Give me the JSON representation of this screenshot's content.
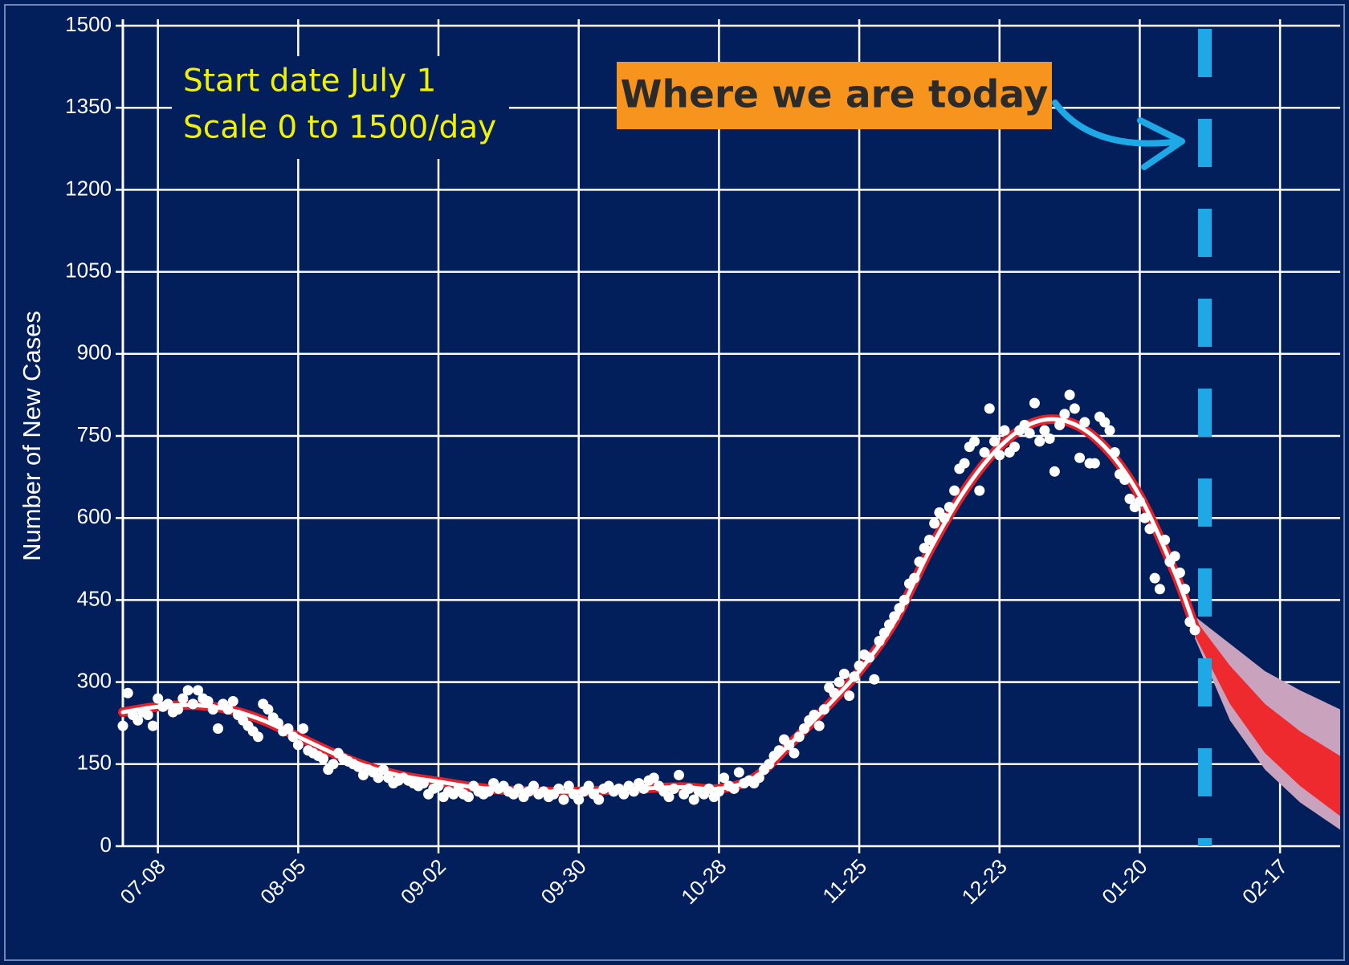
{
  "chart_data": {
    "type": "scatter",
    "ylabel": "Number of New Cases",
    "background": "#021f5c",
    "xlim": [
      "07-01",
      "03-01"
    ],
    "xticks": [
      "07-08",
      "08-05",
      "09-02",
      "09-30",
      "10-28",
      "11-25",
      "12-23",
      "01-20",
      "02-17"
    ],
    "ylim": [
      0,
      1500
    ],
    "yticks": [
      0,
      150,
      300,
      450,
      600,
      750,
      900,
      1050,
      1200,
      1350,
      1500
    ],
    "grid": true,
    "notes": [
      "Start date July 1",
      "Scale 0 to 1500/day"
    ],
    "annotation": {
      "text": "Where we are today",
      "color": "#f7941d"
    },
    "reference_line": {
      "x": "02-02",
      "color": "#1ea8e6"
    },
    "series": [
      {
        "type": "band",
        "color": "#c9a3bd",
        "x": [
          "01-31",
          "02-07",
          "02-14",
          "02-21",
          "03-01"
        ],
        "upper": [
          420,
          370,
          320,
          285,
          250
        ],
        "lower": [
          380,
          230,
          140,
          80,
          30
        ]
      },
      {
        "type": "band",
        "color": "#ee2a2f",
        "x": [
          "01-31",
          "02-07",
          "02-14",
          "02-21",
          "03-01"
        ],
        "upper": [
          415,
          330,
          260,
          210,
          165
        ],
        "lower": [
          385,
          260,
          170,
          110,
          55
        ]
      },
      {
        "type": "line",
        "color": "#ffffff",
        "outline": "#e8202a",
        "x": [
          "07-01",
          "07-08",
          "07-15",
          "07-22",
          "07-29",
          "08-05",
          "08-12",
          "08-19",
          "08-26",
          "09-02",
          "09-09",
          "09-16",
          "09-23",
          "09-30",
          "10-07",
          "10-14",
          "10-21",
          "10-28",
          "11-04",
          "11-11",
          "11-18",
          "11-25",
          "12-02",
          "12-09",
          "12-16",
          "12-23",
          "12-30",
          "01-06",
          "01-13",
          "01-20",
          "01-27",
          "01-31"
        ],
        "values": [
          245,
          255,
          258,
          250,
          230,
          200,
          170,
          145,
          128,
          118,
          108,
          102,
          100,
          100,
          103,
          106,
          108,
          105,
          125,
          185,
          250,
          320,
          410,
          540,
          650,
          730,
          775,
          775,
          730,
          640,
          500,
          400
        ]
      },
      {
        "type": "scatter",
        "color": "#ffffff",
        "x": [
          "07-01",
          "07-02",
          "07-03",
          "07-04",
          "07-05",
          "07-06",
          "07-07",
          "07-08",
          "07-09",
          "07-10",
          "07-11",
          "07-12",
          "07-13",
          "07-14",
          "07-15",
          "07-16",
          "07-17",
          "07-18",
          "07-19",
          "07-20",
          "07-21",
          "07-22",
          "07-23",
          "07-24",
          "07-25",
          "07-26",
          "07-27",
          "07-28",
          "07-29",
          "07-30",
          "07-31",
          "08-01",
          "08-02",
          "08-03",
          "08-04",
          "08-05",
          "08-06",
          "08-07",
          "08-08",
          "08-09",
          "08-10",
          "08-11",
          "08-12",
          "08-13",
          "08-14",
          "08-15",
          "08-16",
          "08-17",
          "08-18",
          "08-19",
          "08-20",
          "08-21",
          "08-22",
          "08-23",
          "08-24",
          "08-25",
          "08-26",
          "08-27",
          "08-28",
          "08-29",
          "08-30",
          "08-31",
          "09-01",
          "09-02",
          "09-03",
          "09-04",
          "09-05",
          "09-06",
          "09-07",
          "09-08",
          "09-09",
          "09-10",
          "09-11",
          "09-12",
          "09-13",
          "09-14",
          "09-15",
          "09-16",
          "09-17",
          "09-18",
          "09-19",
          "09-20",
          "09-21",
          "09-22",
          "09-23",
          "09-24",
          "09-25",
          "09-26",
          "09-27",
          "09-28",
          "09-29",
          "09-30",
          "10-01",
          "10-02",
          "10-03",
          "10-04",
          "10-05",
          "10-06",
          "10-07",
          "10-08",
          "10-09",
          "10-10",
          "10-11",
          "10-12",
          "10-13",
          "10-14",
          "10-15",
          "10-16",
          "10-17",
          "10-18",
          "10-19",
          "10-20",
          "10-21",
          "10-22",
          "10-23",
          "10-24",
          "10-25",
          "10-26",
          "10-27",
          "10-28",
          "10-29",
          "10-30",
          "10-31",
          "11-01",
          "11-02",
          "11-03",
          "11-04",
          "11-05",
          "11-06",
          "11-07",
          "11-08",
          "11-09",
          "11-10",
          "11-11",
          "11-12",
          "11-13",
          "11-14",
          "11-15",
          "11-16",
          "11-17",
          "11-18",
          "11-19",
          "11-20",
          "11-21",
          "11-22",
          "11-23",
          "11-24",
          "11-25",
          "11-26",
          "11-27",
          "11-28",
          "11-29",
          "11-30",
          "12-01",
          "12-02",
          "12-03",
          "12-04",
          "12-05",
          "12-06",
          "12-07",
          "12-08",
          "12-09",
          "12-10",
          "12-11",
          "12-12",
          "12-13",
          "12-14",
          "12-15",
          "12-16",
          "12-17",
          "12-18",
          "12-19",
          "12-20",
          "12-21",
          "12-22",
          "12-23",
          "12-24",
          "12-25",
          "12-26",
          "12-27",
          "12-28",
          "12-29",
          "12-30",
          "12-31",
          "01-01",
          "01-02",
          "01-03",
          "01-04",
          "01-05",
          "01-06",
          "01-07",
          "01-08",
          "01-09",
          "01-10",
          "01-11",
          "01-12",
          "01-13",
          "01-14",
          "01-15",
          "01-16",
          "01-17",
          "01-18",
          "01-19",
          "01-20",
          "01-21",
          "01-22",
          "01-23",
          "01-24",
          "01-25",
          "01-26",
          "01-27",
          "01-28",
          "01-29",
          "01-30",
          "01-31"
        ],
        "values": [
          220,
          280,
          240,
          230,
          245,
          240,
          220,
          270,
          255,
          260,
          245,
          250,
          270,
          285,
          260,
          285,
          270,
          265,
          250,
          215,
          260,
          250,
          265,
          240,
          230,
          220,
          210,
          200,
          260,
          250,
          235,
          225,
          210,
          215,
          200,
          185,
          215,
          175,
          170,
          165,
          160,
          140,
          150,
          170,
          160,
          155,
          150,
          145,
          130,
          140,
          135,
          125,
          140,
          125,
          115,
          120,
          125,
          120,
          115,
          110,
          115,
          95,
          105,
          110,
          90,
          100,
          95,
          105,
          95,
          90,
          110,
          100,
          95,
          100,
          115,
          105,
          110,
          100,
          95,
          105,
          90,
          100,
          110,
          95,
          100,
          90,
          95,
          105,
          85,
          110,
          95,
          85,
          100,
          110,
          95,
          85,
          105,
          110,
          100,
          105,
          95,
          110,
          100,
          115,
          105,
          120,
          125,
          110,
          100,
          90,
          105,
          130,
          95,
          105,
          85,
          100,
          95,
          105,
          90,
          100,
          125,
          110,
          105,
          135,
          115,
          120,
          115,
          125,
          140,
          150,
          165,
          175,
          195,
          185,
          170,
          200,
          215,
          230,
          240,
          220,
          250,
          290,
          280,
          300,
          315,
          275,
          310,
          330,
          350,
          345,
          305,
          375,
          390,
          405,
          420,
          435,
          450,
          480,
          490,
          520,
          545,
          560,
          590,
          610,
          600,
          620,
          650,
          690,
          700,
          730,
          740,
          650,
          720,
          800,
          740,
          715,
          760,
          720,
          730,
          760,
          770,
          755,
          810,
          740,
          760,
          745,
          685,
          770,
          790,
          825,
          800,
          710,
          775,
          700,
          700,
          785,
          775,
          760,
          720,
          680,
          670,
          635,
          620,
          630,
          600,
          580,
          490,
          470,
          560,
          520,
          530,
          500,
          470,
          410,
          395
        ]
      }
    ]
  }
}
